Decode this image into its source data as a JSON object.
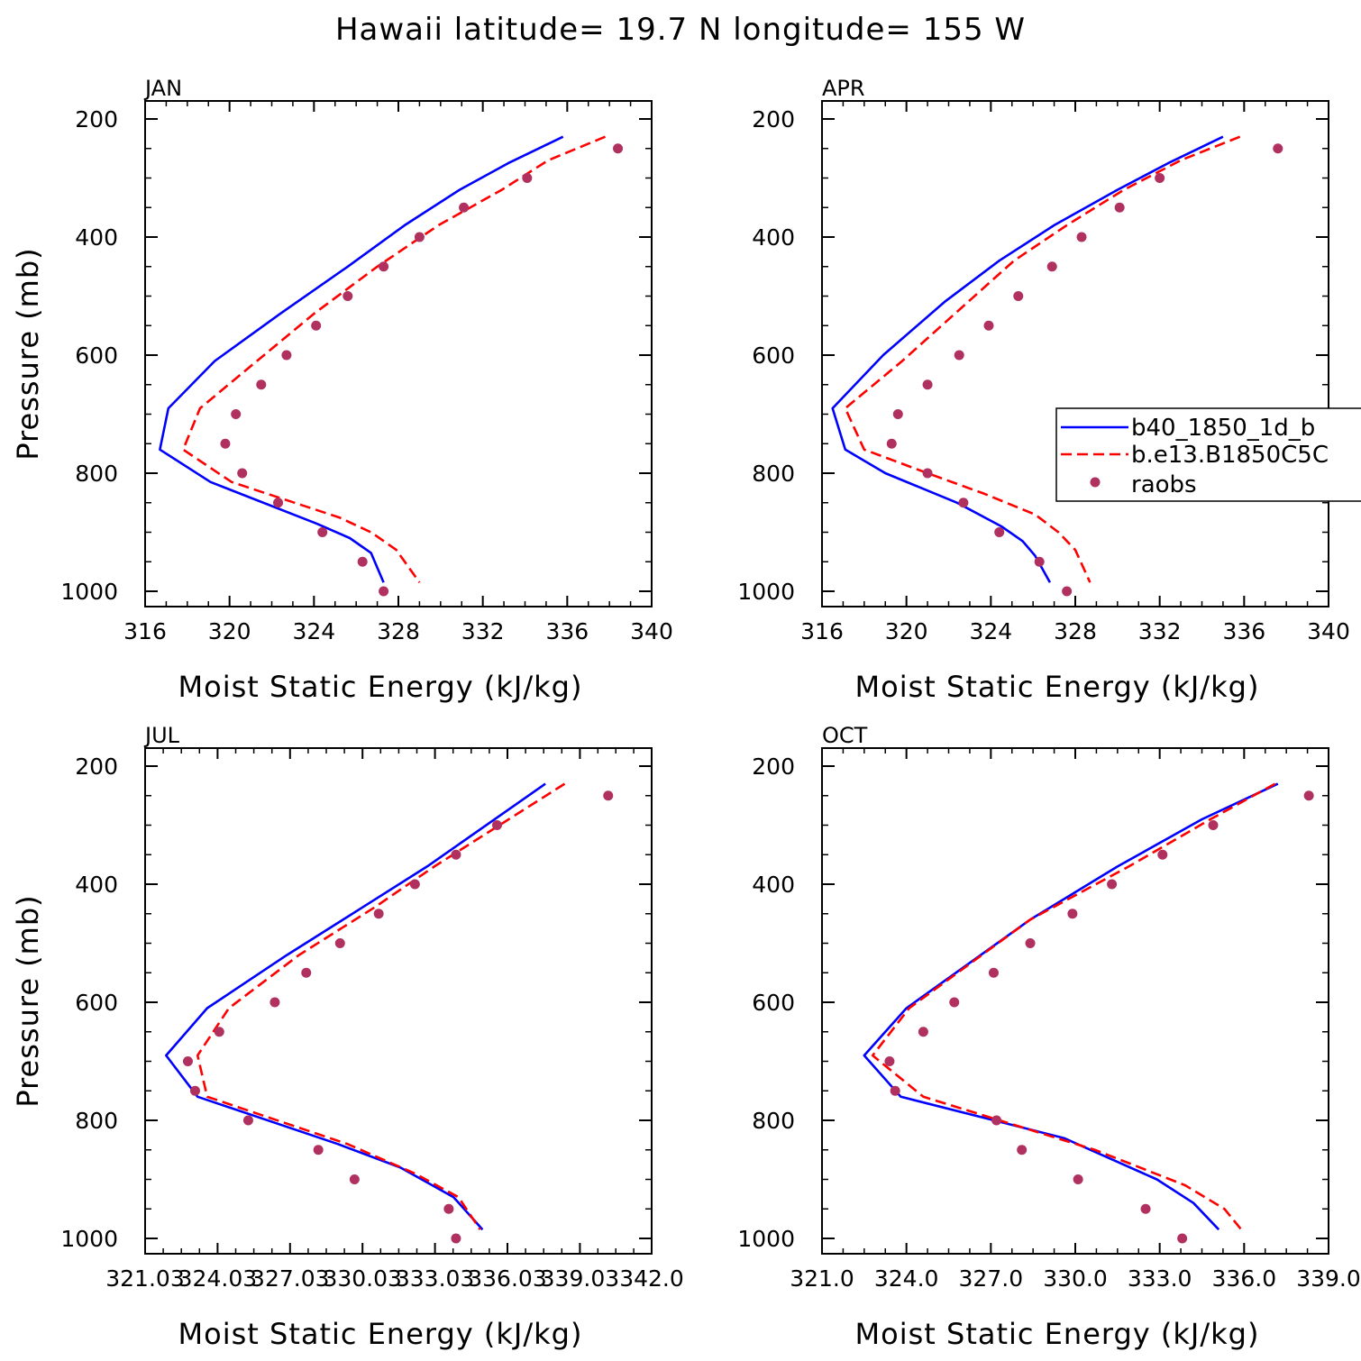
{
  "title": "Hawaii  latitude= 19.7 N longitude= 155 W",
  "legend": {
    "entries": [
      "b40_1850_1d_b",
      "b.e13.B1850C5C",
      "raobs"
    ]
  },
  "colors": {
    "model1": "#0000ff",
    "model2": "#ff0000",
    "obs": "#b03060",
    "axis": "#000000"
  },
  "chart_data": [
    {
      "type": "line",
      "title": "JAN",
      "xlabel": "Moist Static Energy (kJ/kg)",
      "ylabel": "Pressure (mb)",
      "xlim": [
        316,
        340
      ],
      "ylim": [
        1000,
        200
      ],
      "xticks": [
        316,
        320,
        324,
        328,
        332,
        336,
        340
      ],
      "xtick_labels": [
        "316",
        "320",
        "324",
        "328",
        "332",
        "336",
        "340"
      ],
      "yticks": [
        200,
        400,
        600,
        800,
        1000
      ],
      "ytick_labels": [
        "200",
        "400",
        "600",
        "800",
        "1000"
      ],
      "series": [
        {
          "name": "b40_1850_1d_b",
          "style": "solid",
          "x": [
            335.8,
            333.2,
            330.9,
            328.3,
            325.6,
            322.4,
            319.3,
            317.1,
            316.7,
            319.1,
            324.1,
            325.7,
            326.7,
            327.3
          ],
          "y": [
            230,
            275,
            320,
            380,
            450,
            530,
            610,
            690,
            760,
            815,
            885,
            910,
            935,
            985
          ]
        },
        {
          "name": "b.e13.B1850C5C",
          "style": "dashed",
          "x": [
            337.8,
            335.1,
            332.9,
            329.9,
            327.0,
            324.0,
            321.3,
            318.6,
            317.8,
            320.1,
            325.2,
            326.7,
            327.9,
            329.0
          ],
          "y": [
            230,
            270,
            320,
            380,
            450,
            530,
            610,
            690,
            760,
            815,
            875,
            900,
            930,
            985
          ]
        },
        {
          "name": "raobs",
          "style": "marker",
          "x": [
            338.4,
            334.1,
            331.1,
            329.0,
            327.3,
            325.6,
            324.1,
            322.7,
            321.5,
            320.3,
            319.8,
            320.6,
            322.3,
            324.4,
            326.3,
            327.3
          ],
          "y": [
            250,
            300,
            350,
            400,
            450,
            500,
            550,
            600,
            650,
            700,
            750,
            800,
            850,
            900,
            950,
            1000
          ]
        }
      ]
    },
    {
      "type": "line",
      "title": "APR",
      "xlabel": "Moist Static Energy (kJ/kg)",
      "ylabel": "",
      "xlim": [
        316,
        340
      ],
      "ylim": [
        1000,
        200
      ],
      "xticks": [
        316,
        320,
        324,
        328,
        332,
        336,
        340
      ],
      "xtick_labels": [
        "316",
        "320",
        "324",
        "328",
        "332",
        "336",
        "340"
      ],
      "yticks": [
        200,
        400,
        600,
        800,
        1000
      ],
      "ytick_labels": [
        "200",
        "400",
        "600",
        "800",
        "1000"
      ],
      "series": [
        {
          "name": "b40_1850_1d_b",
          "style": "solid",
          "x": [
            335.0,
            332.4,
            330.0,
            327.0,
            324.4,
            321.8,
            318.9,
            316.5,
            317.1,
            319.0,
            322.4,
            324.5,
            325.5,
            326.1,
            326.8
          ],
          "y": [
            230,
            275,
            320,
            380,
            440,
            510,
            600,
            690,
            760,
            800,
            850,
            890,
            915,
            940,
            985
          ]
        },
        {
          "name": "b.e13.B1850C5C",
          "style": "dashed",
          "x": [
            335.8,
            333.0,
            330.3,
            327.6,
            325.1,
            322.6,
            319.8,
            317.1,
            318.0,
            321.0,
            323.7,
            326.1,
            327.2,
            328.0,
            328.7
          ],
          "y": [
            230,
            270,
            320,
            380,
            440,
            520,
            610,
            690,
            760,
            800,
            835,
            870,
            900,
            930,
            985
          ]
        },
        {
          "name": "raobs",
          "style": "marker",
          "x": [
            337.6,
            332.0,
            330.1,
            328.3,
            326.9,
            325.3,
            323.9,
            322.5,
            321.0,
            319.6,
            319.3,
            321.0,
            322.7,
            324.4,
            326.3,
            327.6
          ],
          "y": [
            250,
            300,
            350,
            400,
            450,
            500,
            550,
            600,
            650,
            700,
            750,
            800,
            850,
            900,
            950,
            1000
          ]
        }
      ]
    },
    {
      "type": "line",
      "title": "JUL",
      "xlabel": "Moist Static Energy (kJ/kg)",
      "ylabel": "Pressure (mb)",
      "xlim": [
        321.03,
        342.0
      ],
      "ylim": [
        1000,
        200
      ],
      "xticks": [
        321.03,
        324.03,
        327.03,
        330.03,
        333.03,
        336.03,
        339.03,
        342.0
      ],
      "xtick_labels": [
        "321.03",
        "324.03",
        "327.03",
        "330.03",
        "333.03",
        "336.03",
        "339.03",
        "342.0"
      ],
      "yticks": [
        200,
        400,
        600,
        800,
        1000
      ],
      "ytick_labels": [
        "200",
        "400",
        "600",
        "800",
        "1000"
      ],
      "series": [
        {
          "name": "b40_1850_1d_b",
          "style": "solid",
          "x": [
            337.6,
            332.7,
            330.0,
            326.9,
            323.6,
            321.9,
            323.2,
            329.0,
            331.6,
            333.8,
            335.0
          ],
          "y": [
            230,
            370,
            440,
            520,
            610,
            690,
            760,
            840,
            880,
            930,
            985
          ]
        },
        {
          "name": "b.e13.B1850C5C",
          "style": "dashed",
          "x": [
            338.4,
            333.0,
            330.5,
            327.4,
            324.5,
            323.2,
            323.6,
            329.4,
            332.2,
            334.0,
            334.9
          ],
          "y": [
            230,
            370,
            440,
            520,
            610,
            690,
            760,
            840,
            890,
            930,
            985
          ]
        },
        {
          "name": "raobs",
          "style": "marker",
          "x": [
            340.2,
            335.6,
            333.9,
            332.2,
            330.7,
            329.1,
            327.7,
            326.4,
            324.1,
            322.8,
            323.1,
            325.3,
            328.2,
            329.7,
            333.6,
            333.9
          ],
          "y": [
            250,
            300,
            350,
            400,
            450,
            500,
            550,
            600,
            650,
            700,
            750,
            800,
            850,
            900,
            950,
            1000
          ]
        }
      ]
    },
    {
      "type": "line",
      "title": "OCT",
      "xlabel": "Moist Static Energy (kJ/kg)",
      "ylabel": "",
      "xlim": [
        321.0,
        339.0
      ],
      "ylim": [
        1000,
        200
      ],
      "xticks": [
        321.0,
        324.0,
        327.0,
        330.0,
        333.0,
        336.0,
        339.0
      ],
      "xtick_labels": [
        "321.0",
        "324.0",
        "327.0",
        "330.0",
        "333.0",
        "336.0",
        "339.0"
      ],
      "yticks": [
        200,
        400,
        600,
        800,
        1000
      ],
      "ytick_labels": [
        "200",
        "400",
        "600",
        "800",
        "1000"
      ],
      "series": [
        {
          "name": "b40_1850_1d_b",
          "style": "solid",
          "x": [
            337.2,
            334.5,
            331.5,
            328.4,
            324.0,
            322.5,
            323.8,
            329.6,
            332.9,
            334.2,
            335.1
          ],
          "y": [
            230,
            290,
            370,
            460,
            610,
            690,
            760,
            830,
            900,
            940,
            985
          ]
        },
        {
          "name": "b.e13.B1850C5C",
          "style": "dashed",
          "x": [
            337.1,
            334.8,
            331.9,
            328.4,
            324.1,
            322.8,
            324.6,
            330.7,
            333.9,
            335.3,
            335.9
          ],
          "y": [
            230,
            290,
            370,
            460,
            610,
            690,
            760,
            850,
            910,
            950,
            985
          ]
        },
        {
          "name": "raobs",
          "style": "marker",
          "x": [
            338.3,
            334.9,
            333.1,
            331.3,
            329.9,
            328.4,
            327.1,
            325.7,
            324.6,
            323.4,
            323.6,
            327.2,
            328.1,
            330.1,
            332.5,
            333.8
          ],
          "y": [
            250,
            300,
            350,
            400,
            450,
            500,
            550,
            600,
            650,
            700,
            750,
            800,
            850,
            900,
            950,
            1000
          ]
        }
      ]
    }
  ]
}
